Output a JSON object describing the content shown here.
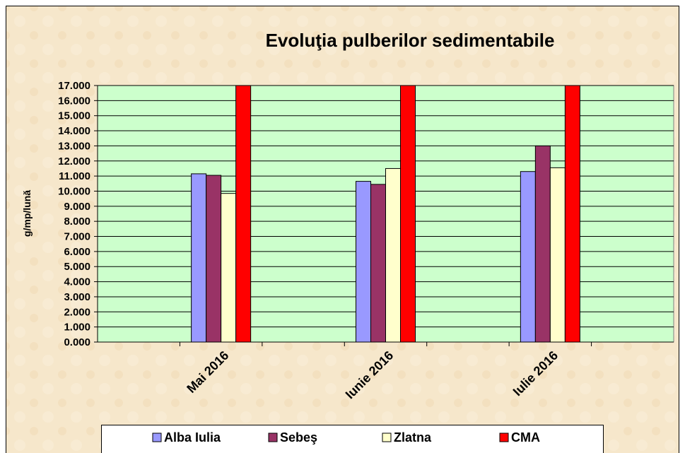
{
  "chart_data": {
    "type": "bar",
    "title": "Evoluţia pulberilor sedimentabile",
    "y_label": "g/mp/lună",
    "categories": [
      null,
      "Mai 2016",
      null,
      "Iunie 2016",
      null,
      "Iulie 2016",
      null
    ],
    "series": [
      {
        "name": "Alba Iulia",
        "color": "#9999ff",
        "values": [
          null,
          11.15,
          null,
          10.65,
          null,
          11.3,
          null
        ]
      },
      {
        "name": "Sebeş",
        "color": "#993366",
        "values": [
          null,
          11.05,
          null,
          10.45,
          null,
          13.0,
          null
        ]
      },
      {
        "name": "Zlatna",
        "color": "#ffffcc",
        "values": [
          null,
          9.85,
          null,
          11.5,
          null,
          11.55,
          null
        ]
      },
      {
        "name": "CMA",
        "color": "#ff0000",
        "values": [
          null,
          17,
          null,
          17,
          null,
          17,
          null
        ]
      }
    ],
    "ylim": [
      0,
      17
    ],
    "yticks": [
      {
        "value": 0,
        "label": "0.000"
      },
      {
        "value": 1,
        "label": "1.000"
      },
      {
        "value": 2,
        "label": "2.000"
      },
      {
        "value": 3,
        "label": "3.000"
      },
      {
        "value": 4,
        "label": "4.000"
      },
      {
        "value": 5,
        "label": "5.000"
      },
      {
        "value": 6,
        "label": "6.000"
      },
      {
        "value": 7,
        "label": "7.000"
      },
      {
        "value": 8,
        "label": "8.000"
      },
      {
        "value": 9,
        "label": "9.000"
      },
      {
        "value": 10,
        "label": "10.000"
      },
      {
        "value": 11,
        "label": "11.000"
      },
      {
        "value": 12,
        "label": "12.000"
      },
      {
        "value": 13,
        "label": "13.000"
      },
      {
        "value": 14,
        "label": "14.000"
      },
      {
        "value": 15,
        "label": "15.000"
      },
      {
        "value": 16,
        "label": "16.000"
      },
      {
        "value": 17,
        "label": "17.000"
      }
    ],
    "grid": true,
    "plot_background": "#ccffcc",
    "legend": "bottom"
  }
}
